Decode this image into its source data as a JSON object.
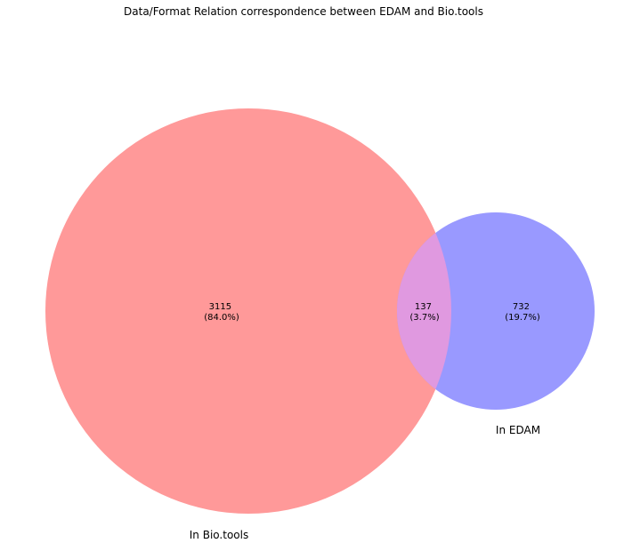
{
  "chart_data": {
    "type": "venn",
    "title": "Data/Format Relation correspondence between EDAM and Bio.tools",
    "sets": [
      {
        "name": "In Bio.tools",
        "color": "#ff9999"
      },
      {
        "name": "In EDAM",
        "color": "#9999ff"
      }
    ],
    "regions": [
      {
        "id": "only_biotools",
        "sets": [
          "In Bio.tools"
        ],
        "count": "3115",
        "percent": "(84.0%)"
      },
      {
        "id": "both",
        "sets": [
          "In Bio.tools",
          "In EDAM"
        ],
        "count": "137",
        "percent": "(3.7%)",
        "color": "#e099e0"
      },
      {
        "id": "only_edam",
        "sets": [
          "In EDAM"
        ],
        "count": "732",
        "percent": "(19.7%)"
      }
    ]
  }
}
